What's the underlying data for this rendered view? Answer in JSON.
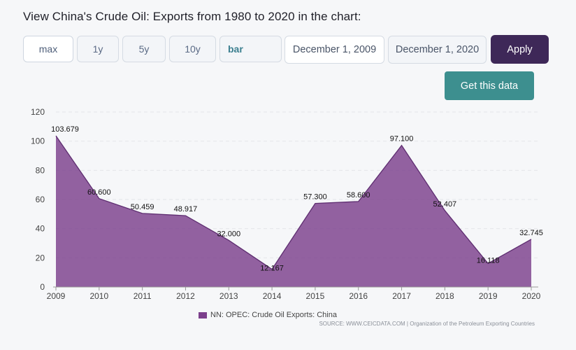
{
  "header": {
    "title": "View China's Crude Oil: Exports from 1980 to 2020 in the chart:"
  },
  "controls": {
    "range_buttons": [
      "max",
      "1y",
      "5y",
      "10y"
    ],
    "chart_type": "bar",
    "date_from": "December 1, 2009",
    "date_to": "December 1, 2020",
    "apply_label": "Apply",
    "get_data_label": "Get this data"
  },
  "colors": {
    "series": "#7b3f8c",
    "apply": "#3e2858",
    "get_data": "#3d8f8f"
  },
  "chart_data": {
    "type": "area",
    "x": [
      "2009",
      "2010",
      "2011",
      "2012",
      "2013",
      "2014",
      "2015",
      "2016",
      "2017",
      "2018",
      "2019",
      "2020"
    ],
    "series": [
      {
        "name": "NN: OPEC: Crude Oil Exports: China",
        "values": [
          103.679,
          60.6,
          50.459,
          48.917,
          32.0,
          12.167,
          57.3,
          58.6,
          97.1,
          52.407,
          16.118,
          32.745
        ],
        "labels": [
          "103.679",
          "60.600",
          "50.459",
          "48.917",
          "32.000",
          "12.167",
          "57.300",
          "58.600",
          "97.100",
          "52.407",
          "16.118",
          "32.745"
        ]
      }
    ],
    "yticks": [
      "0",
      "20",
      "40",
      "60",
      "80",
      "100",
      "120"
    ],
    "ylim": [
      0,
      120
    ],
    "grid": true,
    "legend": "bottom-center",
    "source": "SOURCE: WWW.CEICDATA.COM | Organization of the Petroleum Exporting Countries"
  }
}
